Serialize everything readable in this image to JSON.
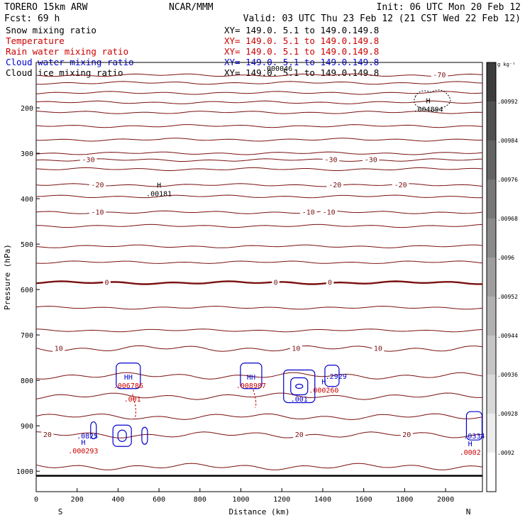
{
  "chart_data": {
    "type": "contour-cross-section",
    "header": {
      "model": "TORERO  15km ARW",
      "org": "NCAR/MMM",
      "init": "Init: 06 UTC Mon 20 Feb 12",
      "fcst": "Fcst:    69 h",
      "valid": "Valid: 03 UTC Thu 23 Feb 12 (21 CST Wed 22 Feb 12)"
    },
    "legend": [
      {
        "name": "Snow mixing ratio",
        "xy": "",
        "color": "#000000"
      },
      {
        "name": "Temperature",
        "xy": "XY= 149.0.  5.1 to 149.0.149.8",
        "color": "#cc0000"
      },
      {
        "name": "Rain water mixing ratio",
        "xy": "XY= 149.0.  5.1 to 149.0.149.8",
        "color": "#cc0000"
      },
      {
        "name": "Cloud water mixing ratio",
        "xy": "XY= 149.0.  5.1 to 149.0.149.8",
        "color": "#0000cc"
      },
      {
        "name": "Cloud ice mixing ratio",
        "xy": "XY= 149.0.  5.1 to 149.0.149.8",
        "color": "#000000"
      }
    ],
    "top_xy": "XY= 149.0.  5.1 to 149.0.149.8",
    "overlap_value": ".000046",
    "xlabel": "Distance (km)",
    "ylabel": "Pressure (hPa)",
    "xlim": [
      0,
      2180
    ],
    "ylim": [
      1045,
      100
    ],
    "x_ticks": [
      0,
      200,
      400,
      600,
      800,
      1000,
      1200,
      1400,
      1600,
      1800,
      2000
    ],
    "y_ticks": [
      200,
      300,
      400,
      500,
      600,
      700,
      800,
      900,
      1000
    ],
    "ends": {
      "left": "S",
      "right": "N"
    },
    "isotherms": [
      {
        "p": 128,
        "label": "-70",
        "lx": [
          1970
        ]
      },
      {
        "p": 145,
        "label": "",
        "lx": []
      },
      {
        "p": 167,
        "label": "",
        "lx": []
      },
      {
        "p": 188,
        "label": "",
        "lx": []
      },
      {
        "p": 210,
        "label": "",
        "lx": []
      },
      {
        "p": 240,
        "label": "",
        "lx": []
      },
      {
        "p": 270,
        "label": "",
        "lx": []
      },
      {
        "p": 300,
        "label": "",
        "lx": []
      },
      {
        "p": 315,
        "label": "-30",
        "lx": [
          255,
          1440,
          1635
        ]
      },
      {
        "p": 335,
        "label": "",
        "lx": []
      },
      {
        "p": 370,
        "label": "-20",
        "lx": [
          300,
          1460,
          1780
        ]
      },
      {
        "p": 395,
        "label": "",
        "lx": []
      },
      {
        "p": 430,
        "label": "-10",
        "lx": [
          300,
          1330,
          1430
        ]
      },
      {
        "p": 460,
        "label": "",
        "lx": []
      },
      {
        "p": 505,
        "label": "",
        "lx": []
      },
      {
        "p": 540,
        "label": "",
        "lx": []
      },
      {
        "p": 585,
        "label": "0",
        "lx": [
          345,
          1170,
          1435
        ],
        "bold": true
      },
      {
        "p": 640,
        "label": "",
        "lx": []
      },
      {
        "p": 690,
        "label": "",
        "lx": []
      },
      {
        "p": 730,
        "label": "10",
        "lx": [
          110,
          1270,
          1670
        ]
      },
      {
        "p": 790,
        "label": "",
        "lx": []
      },
      {
        "p": 835,
        "label": "",
        "lx": []
      },
      {
        "p": 880,
        "label": "",
        "lx": []
      },
      {
        "p": 920,
        "label": "20",
        "lx": [
          55,
          1285,
          1810
        ]
      },
      {
        "p": 990,
        "label": "",
        "lx": []
      }
    ],
    "highs": [
      {
        "x": 600,
        "p": 376,
        "text": ".00181",
        "color": "#000000"
      },
      {
        "x": 1915,
        "p": 190,
        "text": ".004804",
        "color": "#000000"
      },
      {
        "x": 450,
        "p": 798,
        "text": ".006786",
        "color": "#cc0000",
        "blue": "HH"
      },
      {
        "x": 1050,
        "p": 798,
        "text": ".008987",
        "color": "#cc0000",
        "blue": "HH"
      },
      {
        "x": 1405,
        "p": 808,
        "text": ".000260",
        "color": "#cc0000",
        "blue": "H"
      },
      {
        "x": 230,
        "p": 942,
        "text": ".000293",
        "color": "#cc0000",
        "blue": "H"
      },
      {
        "x": 2120,
        "p": 945,
        "text": ".0002",
        "color": "#cc0000",
        "blue": "H"
      }
    ],
    "inline_labels": [
      {
        "x": 470,
        "p": 847,
        "text": ".001",
        "color": "#cc0000"
      },
      {
        "x": 1285,
        "p": 847,
        "text": ".001",
        "color": "#0000cc"
      },
      {
        "x": 250,
        "p": 928,
        "text": ".0825",
        "color": "#0000cc"
      },
      {
        "x": 1465,
        "p": 797,
        "text": ".2929",
        "color": "#0000cc"
      },
      {
        "x": 2140,
        "p": 928,
        "text": ".0334",
        "color": "#0000cc"
      }
    ],
    "colorbar": {
      "unit": "g kg⁻¹",
      "labels": [
        ".00992",
        ".00984",
        ".00976",
        ".00968",
        ".0096",
        ".00952",
        ".00944",
        ".00936",
        ".00928",
        ".0092"
      ]
    }
  }
}
